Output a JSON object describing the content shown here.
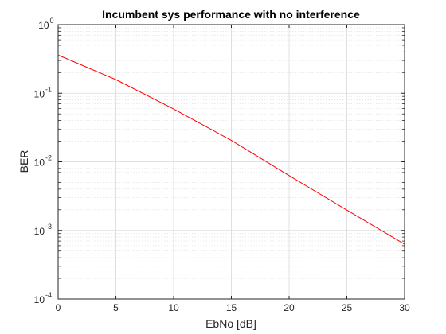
{
  "chart_data": {
    "type": "line",
    "title": "Incumbent sys performance with no interference",
    "xlabel": "EbNo [dB]",
    "ylabel": "BER",
    "xlim": [
      0,
      30
    ],
    "ylim": [
      0.0001,
      1
    ],
    "yscale": "log",
    "grid": true,
    "minor_grid": true,
    "x_ticks": [
      0,
      5,
      10,
      15,
      20,
      25,
      30
    ],
    "y_ticks": [
      {
        "value": 1,
        "base": "10",
        "exp": "0"
      },
      {
        "value": 0.1,
        "base": "10",
        "exp": "-1"
      },
      {
        "value": 0.01,
        "base": "10",
        "exp": "-2"
      },
      {
        "value": 0.001,
        "base": "10",
        "exp": "-3"
      },
      {
        "value": 0.0001,
        "base": "10",
        "exp": "-4"
      }
    ],
    "series": [
      {
        "color": "#ff0000",
        "x": [
          0,
          5,
          10,
          15,
          20,
          25,
          30
        ],
        "y": [
          0.36,
          0.158,
          0.059,
          0.0205,
          0.0063,
          0.00198,
          0.00063
        ]
      }
    ]
  }
}
